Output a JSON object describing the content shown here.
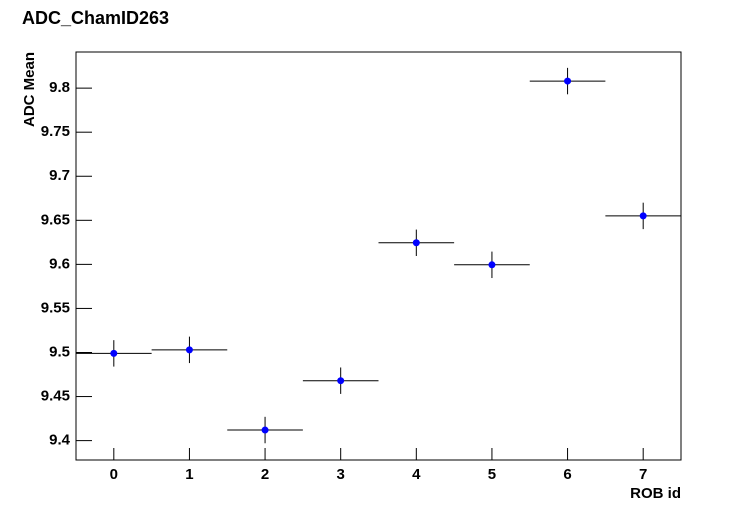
{
  "chart_data": {
    "type": "scatter",
    "title": "ADC_ChamID263",
    "x_label": "ROB id",
    "y_label": "ADC Mean",
    "x": [
      0,
      1,
      2,
      3,
      4,
      5,
      6,
      7
    ],
    "values": [
      9.499,
      9.503,
      9.412,
      9.468,
      9.6245,
      9.5995,
      9.808,
      9.655
    ],
    "errors": [
      0.015,
      0.015,
      0.015,
      0.015,
      0.015,
      0.015,
      0.015,
      0.015
    ],
    "xerr": [
      0.5,
      0.5,
      0.5,
      0.5,
      0.5,
      0.5,
      0.5,
      0.5
    ],
    "color": "#0000ff",
    "xlim": [
      -0.5,
      7.5
    ],
    "xticks": [
      0,
      1,
      2,
      3,
      4,
      5,
      6,
      7
    ],
    "ylim": [
      9.378,
      9.841
    ],
    "yticks": [
      9.4,
      9.45,
      9.5,
      9.55,
      9.6,
      9.65,
      9.7,
      9.75,
      9.8
    ]
  }
}
